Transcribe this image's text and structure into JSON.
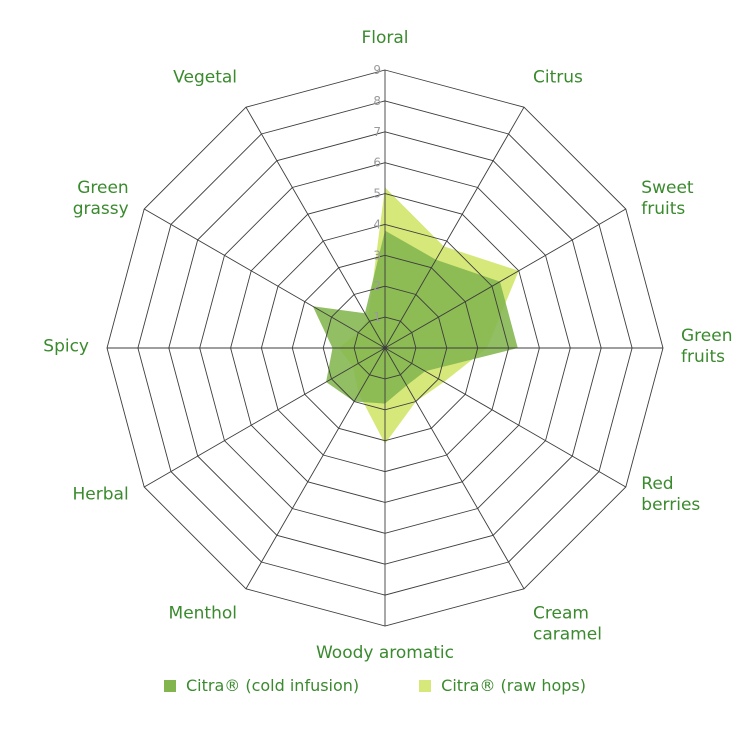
{
  "colors": {
    "grid": "#3d3d3d",
    "label": "#3a8a2e",
    "tick": "#9a9a9a"
  },
  "chart_data": {
    "type": "radar",
    "categories": [
      "Floral",
      "Citrus",
      "Sweet fruits",
      "Green fruits",
      "Red berries",
      "Cream caramel",
      "Woody aromatic",
      "Menthol",
      "Herbal",
      "Spicy",
      "Green grassy",
      "Vegetal"
    ],
    "category_lines": [
      [
        "Floral"
      ],
      [
        "Citrus"
      ],
      [
        "Sweet",
        "fruits"
      ],
      [
        "Green",
        "fruits"
      ],
      [
        "Red",
        "berries"
      ],
      [
        "Cream",
        "caramel"
      ],
      [
        "Woody aromatic"
      ],
      [
        "Menthol"
      ],
      [
        "Herbal"
      ],
      [
        "Spicy"
      ],
      [
        "Green",
        "grassy"
      ],
      [
        "Vegetal"
      ]
    ],
    "rlim": [
      0,
      9
    ],
    "ticks": [
      "1",
      "2",
      "3",
      "4",
      "5",
      "6",
      "7",
      "8",
      "9"
    ],
    "series": [
      {
        "name": "Citra® (raw hops)",
        "color": "#d6e87a",
        "values": [
          5.2,
          3.8,
          5.0,
          3.3,
          2.2,
          2.0,
          3.1,
          1.7,
          1.2,
          1.5,
          1.0,
          1.1
        ]
      },
      {
        "name": "Citra® (cold infusion)",
        "color": "#83b54e",
        "values": [
          3.8,
          3.3,
          4.3,
          4.3,
          1.5,
          1.4,
          1.8,
          2.0,
          2.2,
          1.7,
          2.7,
          1.3
        ]
      }
    ]
  },
  "legend": [
    {
      "label": "Citra® (cold infusion)",
      "color": "#83b54e"
    },
    {
      "label": "Citra® (raw hops)",
      "color": "#d6e87a"
    }
  ]
}
